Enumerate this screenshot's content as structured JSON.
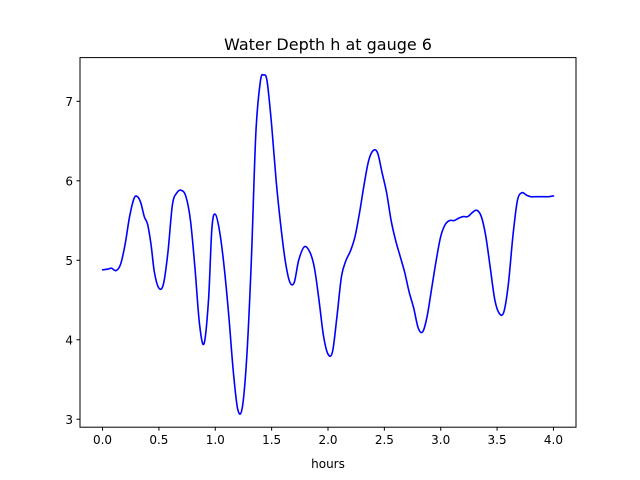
{
  "chart_data": {
    "type": "line",
    "title": "Water Depth h at gauge 6",
    "xlabel": "hours",
    "ylabel": "",
    "xlim": [
      -0.2,
      4.2
    ],
    "ylim": [
      2.9,
      7.55
    ],
    "xticks": [
      0.0,
      0.5,
      1.0,
      1.5,
      2.0,
      2.5,
      3.0,
      3.5,
      4.0
    ],
    "xtick_labels": [
      "0.0",
      "0.5",
      "1.0",
      "1.5",
      "2.0",
      "2.5",
      "3.0",
      "3.5",
      "4.0"
    ],
    "yticks": [
      3,
      4,
      5,
      6,
      7
    ],
    "ytick_labels": [
      "3",
      "4",
      "5",
      "6",
      "7"
    ],
    "grid": false,
    "series": [
      {
        "color": "#0000ff",
        "x": [
          0.0,
          0.05,
          0.08,
          0.12,
          0.16,
          0.2,
          0.24,
          0.28,
          0.31,
          0.34,
          0.37,
          0.4,
          0.43,
          0.46,
          0.5,
          0.54,
          0.58,
          0.62,
          0.66,
          0.7,
          0.74,
          0.78,
          0.82,
          0.86,
          0.9,
          0.94,
          0.97,
          1.0,
          1.04,
          1.08,
          1.12,
          1.16,
          1.2,
          1.24,
          1.28,
          1.32,
          1.36,
          1.4,
          1.43,
          1.46,
          1.5,
          1.54,
          1.58,
          1.62,
          1.66,
          1.7,
          1.74,
          1.79,
          1.84,
          1.88,
          1.92,
          1.96,
          2.0,
          2.04,
          2.08,
          2.12,
          2.16,
          2.2,
          2.24,
          2.28,
          2.32,
          2.36,
          2.4,
          2.44,
          2.48,
          2.52,
          2.56,
          2.6,
          2.64,
          2.68,
          2.72,
          2.76,
          2.8,
          2.84,
          2.88,
          2.92,
          2.96,
          3.0,
          3.04,
          3.08,
          3.12,
          3.16,
          3.2,
          3.24,
          3.28,
          3.32,
          3.36,
          3.4,
          3.44,
          3.48,
          3.52,
          3.56,
          3.6,
          3.64,
          3.68,
          3.72,
          3.76,
          3.8,
          3.84,
          3.88,
          3.92,
          3.96,
          4.0
        ],
        "y": [
          4.88,
          4.89,
          4.9,
          4.87,
          4.95,
          5.2,
          5.55,
          5.78,
          5.8,
          5.72,
          5.55,
          5.45,
          5.2,
          4.85,
          4.65,
          4.7,
          5.1,
          5.7,
          5.85,
          5.88,
          5.8,
          5.5,
          4.9,
          4.2,
          3.95,
          4.5,
          5.4,
          5.58,
          5.35,
          4.9,
          4.3,
          3.6,
          3.12,
          3.15,
          3.8,
          5.0,
          6.6,
          7.25,
          7.33,
          7.25,
          6.7,
          6.0,
          5.45,
          5.0,
          4.73,
          4.72,
          5.0,
          5.17,
          5.1,
          4.9,
          4.5,
          4.05,
          3.82,
          3.85,
          4.3,
          4.8,
          5.0,
          5.12,
          5.3,
          5.6,
          5.95,
          6.25,
          6.38,
          6.35,
          6.1,
          5.85,
          5.5,
          5.25,
          5.05,
          4.85,
          4.6,
          4.4,
          4.15,
          4.1,
          4.3,
          4.65,
          5.0,
          5.3,
          5.45,
          5.5,
          5.5,
          5.53,
          5.55,
          5.55,
          5.6,
          5.63,
          5.55,
          5.3,
          4.9,
          4.5,
          4.33,
          4.35,
          4.7,
          5.3,
          5.75,
          5.85,
          5.82,
          5.8,
          5.8,
          5.8,
          5.8,
          5.8,
          5.81
        ]
      }
    ]
  }
}
